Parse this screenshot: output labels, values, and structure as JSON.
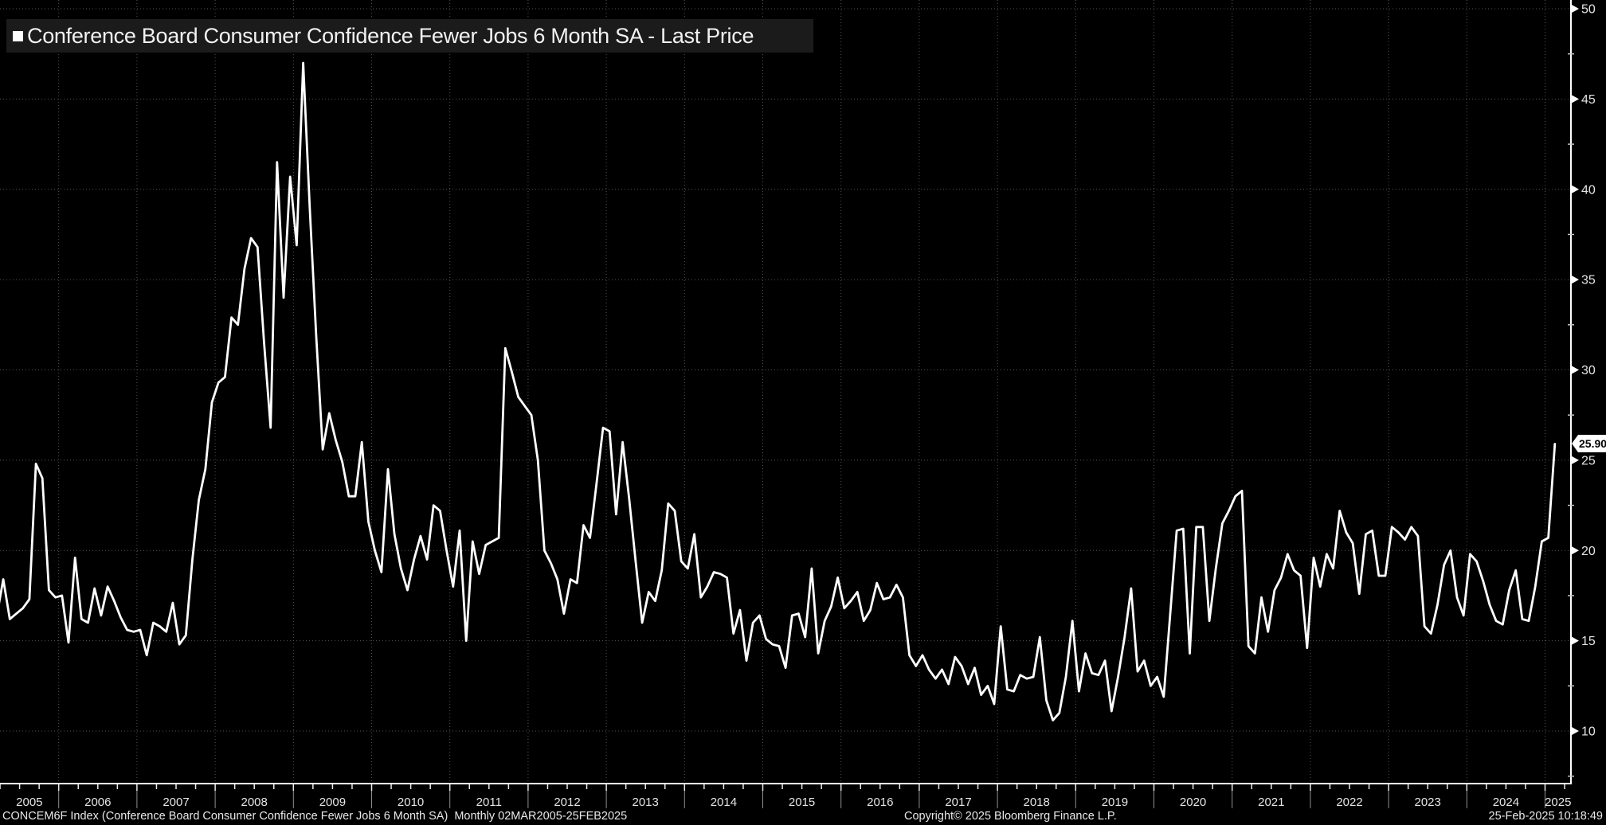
{
  "title_bar": {
    "title": "Conference Board Consumer Confidence Fewer Jobs 6 Month SA - Last Price"
  },
  "last_price_badge": {
    "value": "25.90"
  },
  "status_bar": {
    "left": "CONCEM6F Index (Conference Board Consumer Confidence Fewer Jobs 6 Month SA)  Monthly 02MAR2005-25FEB2025",
    "center": "Copyright© 2025 Bloomberg Finance L.P.",
    "right": "25-Feb-2025 10:18:49"
  },
  "colors": {
    "background": "#000000",
    "line": "#ffffff",
    "grid": "#545454",
    "title_bar_bg": "#1b1b1b",
    "text": "#e4e4e4",
    "badge_bg": "#ffffff",
    "badge_text": "#000000"
  },
  "chart_data": {
    "type": "line",
    "title": "Conference Board Consumer Confidence Fewer Jobs 6 Month SA - Last Price",
    "ticker": "CONCEM6F Index",
    "frequency": "Monthly",
    "start": "2005-03",
    "end": "2025-02",
    "last_price": 25.9,
    "grid": "dotted",
    "legend_position": "top-left",
    "ylim": [
      7.3,
      50.5
    ],
    "y_ticks": [
      10,
      15,
      20,
      25,
      30,
      35,
      40,
      45,
      50
    ],
    "x_ticks_years": [
      "2005",
      "2006",
      "2007",
      "2008",
      "2009",
      "2010",
      "2011",
      "2012",
      "2013",
      "2014",
      "2015",
      "2016",
      "2017",
      "2018",
      "2019",
      "2020",
      "2021",
      "2022",
      "2023",
      "2024",
      "2025"
    ],
    "values": [
      16.4,
      18.4,
      16.2,
      16.5,
      16.8,
      17.3,
      24.8,
      24.0,
      17.8,
      17.4,
      17.5,
      14.9,
      19.6,
      16.2,
      16.0,
      17.9,
      16.4,
      18.0,
      17.2,
      16.3,
      15.6,
      15.5,
      15.6,
      14.2,
      16.0,
      15.8,
      15.5,
      17.1,
      14.8,
      15.3,
      19.5,
      22.8,
      24.5,
      28.2,
      29.3,
      29.6,
      32.9,
      32.5,
      35.6,
      37.3,
      36.8,
      31.5,
      26.8,
      41.5,
      34.0,
      40.7,
      36.9,
      47.0,
      39.0,
      31.9,
      25.6,
      27.6,
      26.1,
      24.9,
      23.0,
      23.0,
      26.0,
      21.6,
      20.0,
      18.8,
      24.5,
      20.9,
      19.0,
      17.8,
      19.5,
      20.8,
      19.5,
      22.5,
      22.2,
      20.0,
      18.0,
      21.1,
      15.0,
      20.5,
      18.7,
      20.3,
      20.5,
      20.7,
      31.2,
      29.9,
      28.5,
      28.0,
      27.5,
      25.0,
      20.0,
      19.3,
      18.4,
      16.5,
      18.4,
      18.2,
      21.4,
      20.7,
      23.7,
      26.8,
      26.6,
      22.0,
      26.0,
      22.9,
      19.4,
      16.0,
      17.7,
      17.2,
      18.9,
      22.6,
      22.2,
      19.4,
      19.0,
      20.9,
      17.4,
      18.0,
      18.8,
      18.7,
      18.5,
      15.4,
      16.7,
      13.9,
      16.0,
      16.4,
      15.1,
      14.8,
      14.7,
      13.5,
      16.4,
      16.5,
      15.2,
      19.0,
      14.3,
      16.1,
      16.9,
      18.5,
      16.8,
      17.2,
      17.7,
      16.1,
      16.7,
      18.2,
      17.3,
      17.4,
      18.1,
      17.4,
      14.2,
      13.6,
      14.2,
      13.4,
      12.9,
      13.4,
      12.6,
      14.1,
      13.6,
      12.6,
      13.5,
      12.0,
      12.5,
      11.5,
      15.8,
      12.3,
      12.2,
      13.1,
      12.9,
      13.0,
      15.2,
      11.7,
      10.6,
      11.0,
      13.0,
      16.1,
      12.2,
      14.3,
      13.2,
      13.1,
      13.9,
      11.1,
      13.0,
      15.2,
      17.9,
      13.3,
      13.9,
      12.5,
      13.0,
      11.9,
      16.5,
      21.1,
      21.2,
      14.3,
      21.3,
      21.3,
      16.1,
      19.0,
      21.5,
      22.2,
      23.0,
      23.3,
      14.7,
      14.3,
      17.4,
      15.5,
      17.8,
      18.5,
      19.8,
      18.9,
      18.6,
      14.6,
      19.6,
      18.0,
      19.8,
      19.0,
      22.2,
      21.0,
      20.4,
      17.6,
      20.9,
      21.1,
      18.6,
      18.6,
      21.3,
      21.0,
      20.6,
      21.3,
      20.8,
      15.8,
      15.4,
      17.0,
      19.2,
      20.0,
      17.4,
      16.4,
      19.8,
      19.4,
      18.3,
      17.0,
      16.1,
      15.9,
      17.8,
      18.9,
      16.2,
      16.1,
      18.0,
      20.5,
      20.7,
      25.9
    ]
  }
}
